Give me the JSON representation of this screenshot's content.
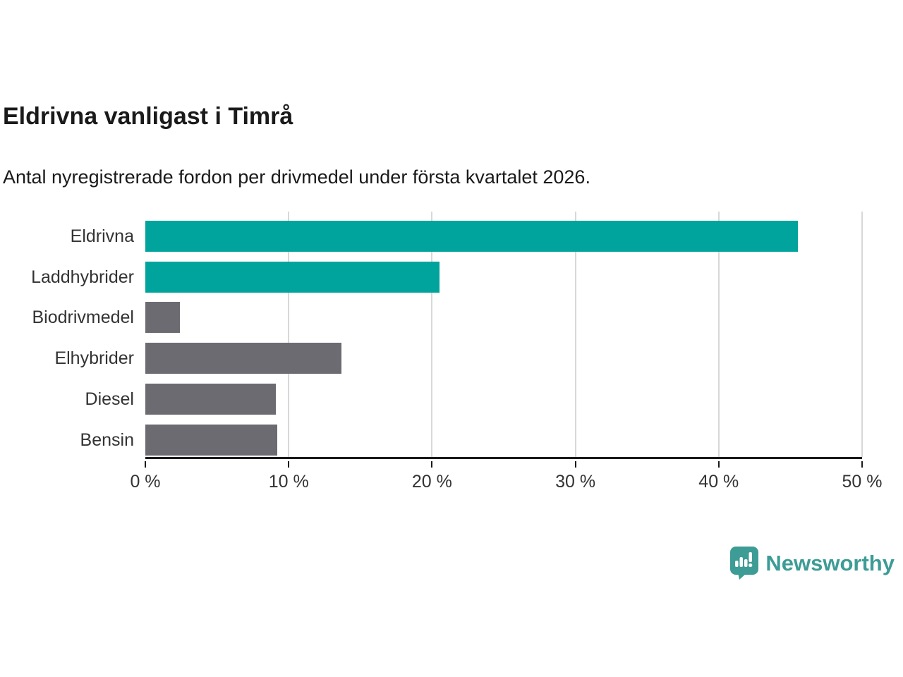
{
  "title": "Eldrivna vanligast i Timrå",
  "subtitle": "Antal nyregistrerade fordon per drivmedel under första kvartalet 2026.",
  "chart_data": {
    "type": "bar",
    "orientation": "horizontal",
    "title": "Eldrivna vanligast i Timrå",
    "subtitle": "Antal nyregistrerade fordon per drivmedel under första kvartalet 2026.",
    "categories": [
      "Eldrivna",
      "Laddhybrider",
      "Biodrivmedel",
      "Elhybrider",
      "Diesel",
      "Bensin"
    ],
    "values": [
      45.5,
      20.5,
      2.4,
      13.7,
      9.1,
      9.2
    ],
    "unit": "%",
    "xlabel": "",
    "ylabel": "",
    "xlim": [
      0,
      50
    ],
    "x_ticks": [
      0,
      10,
      20,
      30,
      40,
      50
    ],
    "x_tick_labels": [
      "0 %",
      "10 %",
      "20 %",
      "30 %",
      "40 %",
      "50 %"
    ],
    "bar_colors": [
      "#00a49c",
      "#00a49c",
      "#6b6b71",
      "#6b6b71",
      "#6b6b71",
      "#6b6b71"
    ],
    "highlight_color": "#00a49c",
    "default_color": "#6b6b71",
    "gridline_color": "#d8d8d8",
    "axis_color": "#1a1a1a",
    "grid": "vertical",
    "legend": "none"
  },
  "branding": {
    "logo_text": "Newsworthy",
    "logo_color": "#3d9c95",
    "logo_icon": "newsworthy-speech-bubble-bar-chart-icon"
  }
}
